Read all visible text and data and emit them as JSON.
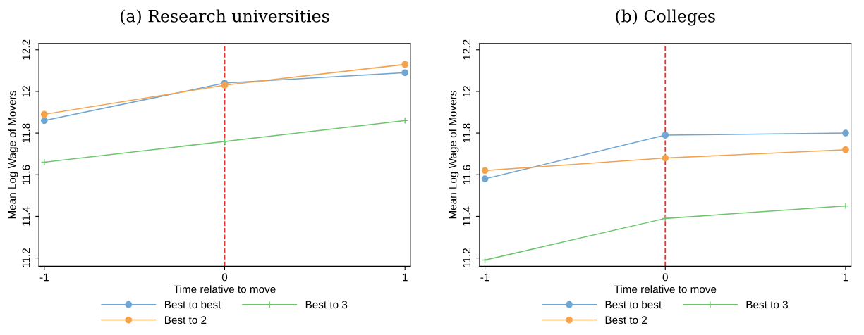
{
  "chart_data": [
    {
      "type": "line",
      "title": "(a) Research universities",
      "xlabel": "Time relative to move",
      "ylabel": "Mean Log Wage of Movers",
      "x": [
        -1,
        0,
        1
      ],
      "xlim": [
        -1.03,
        1.03
      ],
      "xticks": [
        -1,
        0,
        1
      ],
      "ylim": [
        11.16,
        12.23
      ],
      "yticks": [
        11.2,
        11.4,
        11.6,
        11.8,
        12,
        12.2
      ],
      "grid": false,
      "legend": "bottom",
      "series": [
        {
          "name": "Best to best",
          "color": "#6fa6d3",
          "marker": "circle",
          "values": [
            11.86,
            12.04,
            12.09
          ]
        },
        {
          "name": "Best to 2",
          "color": "#f5a24c",
          "marker": "circle",
          "values": [
            11.89,
            12.03,
            12.13
          ]
        },
        {
          "name": "Best to 3",
          "color": "#6cc46c",
          "marker": "cross",
          "values": [
            11.66,
            11.76,
            11.86
          ]
        }
      ],
      "ref_lines": [
        {
          "axis": "x",
          "value": 0,
          "color": "#e8322d",
          "line_style": "dashed"
        }
      ]
    },
    {
      "type": "line",
      "title": "(b) Colleges",
      "xlabel": "Time relative to move",
      "ylabel": "Mean Log Wage of Movers",
      "x": [
        -1,
        0,
        1
      ],
      "xlim": [
        -1.03,
        1.03
      ],
      "xticks": [
        -1,
        0,
        1
      ],
      "ylim": [
        11.16,
        12.23
      ],
      "yticks": [
        11.2,
        11.4,
        11.6,
        11.8,
        12,
        12.2
      ],
      "grid": false,
      "legend": "bottom",
      "series": [
        {
          "name": "Best to best",
          "color": "#6fa6d3",
          "marker": "circle",
          "values": [
            11.58,
            11.79,
            11.8
          ]
        },
        {
          "name": "Best to 2",
          "color": "#f5a24c",
          "marker": "circle",
          "values": [
            11.62,
            11.68,
            11.72
          ]
        },
        {
          "name": "Best to 3",
          "color": "#6cc46c",
          "marker": "cross",
          "values": [
            11.19,
            11.39,
            11.45
          ]
        }
      ],
      "ref_lines": [
        {
          "axis": "x",
          "value": 0,
          "color": "#e8322d",
          "line_style": "dashed"
        }
      ]
    }
  ]
}
